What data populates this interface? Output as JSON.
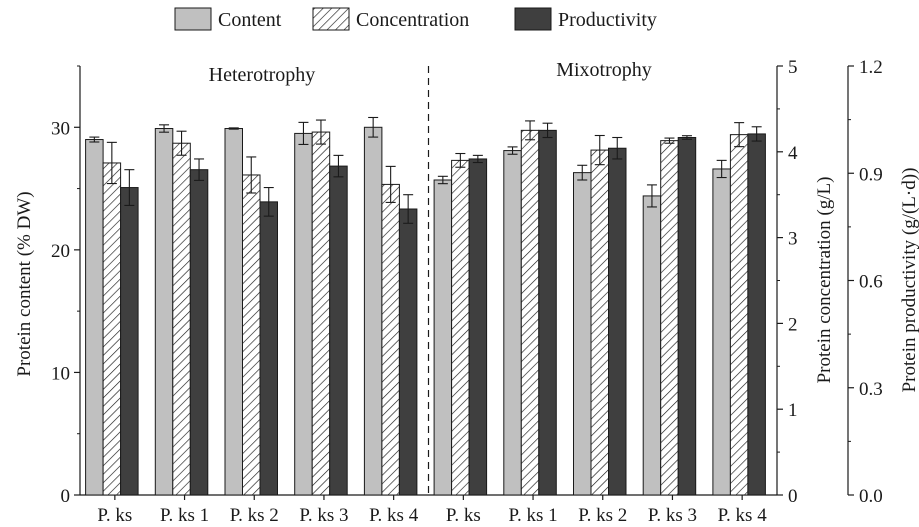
{
  "chart_data": {
    "type": "bar",
    "legend": {
      "placement": "top",
      "entries": [
        {
          "name": "Content",
          "style": "solid",
          "color": "#c0c0c0"
        },
        {
          "name": "Concentration",
          "style": "hatched",
          "color": "#ffffff"
        },
        {
          "name": "Productivity",
          "style": "solid",
          "color": "#3f3f3f"
        }
      ]
    },
    "groups": [
      {
        "label": "Heterotrophy",
        "categories": [
          "P. ks",
          "P. ks 1",
          "P. ks 2",
          "P. ks 3",
          "P. ks 4"
        ]
      },
      {
        "label": "Mixotrophy",
        "categories": [
          "P. ks",
          "P. ks 1",
          "P. ks 2",
          "P. ks 3",
          "P. ks 4"
        ]
      }
    ],
    "categories": [
      "P. ks",
      "P. ks 1",
      "P. ks 2",
      "P. ks 3",
      "P. ks 4",
      "P. ks",
      "P. ks 1",
      "P. ks 2",
      "P. ks 3",
      "P. ks 4"
    ],
    "series": [
      {
        "name": "Content",
        "axis": "left",
        "values": [
          29.0,
          29.9,
          29.9,
          29.5,
          30.0,
          25.7,
          28.1,
          26.3,
          24.4,
          26.6
        ],
        "errors": [
          0.2,
          0.3,
          0.05,
          0.9,
          0.8,
          0.3,
          0.3,
          0.6,
          0.9,
          0.7
        ]
      },
      {
        "name": "Concentration",
        "axis": "right1",
        "values": [
          3.87,
          4.1,
          3.73,
          4.23,
          3.62,
          3.9,
          4.25,
          4.02,
          4.13,
          4.2
        ],
        "errors": [
          0.24,
          0.14,
          0.21,
          0.14,
          0.21,
          0.08,
          0.11,
          0.17,
          0.03,
          0.14
        ]
      },
      {
        "name": "Productivity",
        "axis": "right2",
        "values": [
          0.86,
          0.91,
          0.82,
          0.92,
          0.8,
          0.94,
          1.02,
          0.97,
          1.0,
          1.01
        ],
        "errors": [
          0.05,
          0.03,
          0.04,
          0.03,
          0.04,
          0.01,
          0.02,
          0.03,
          0.005,
          0.02
        ]
      }
    ],
    "axes": {
      "left": {
        "label": "Protein content (% DW)",
        "ylim": [
          0,
          35
        ],
        "ticks": [
          0,
          10,
          20,
          30
        ]
      },
      "right1": {
        "label": "Protein concentration (g/L)",
        "ylim": [
          0,
          5
        ],
        "ticks": [
          0,
          1,
          2,
          3,
          4,
          5
        ]
      },
      "right2": {
        "label": "Protein productivity (g/(L·d))",
        "ylim": [
          0,
          1.2
        ],
        "ticks": [
          "0.0",
          "0.3",
          "0.6",
          "0.9",
          "1.2"
        ]
      }
    },
    "grid": false,
    "divider": "dashed vertical line between Heterotrophy and Mixotrophy groups"
  }
}
